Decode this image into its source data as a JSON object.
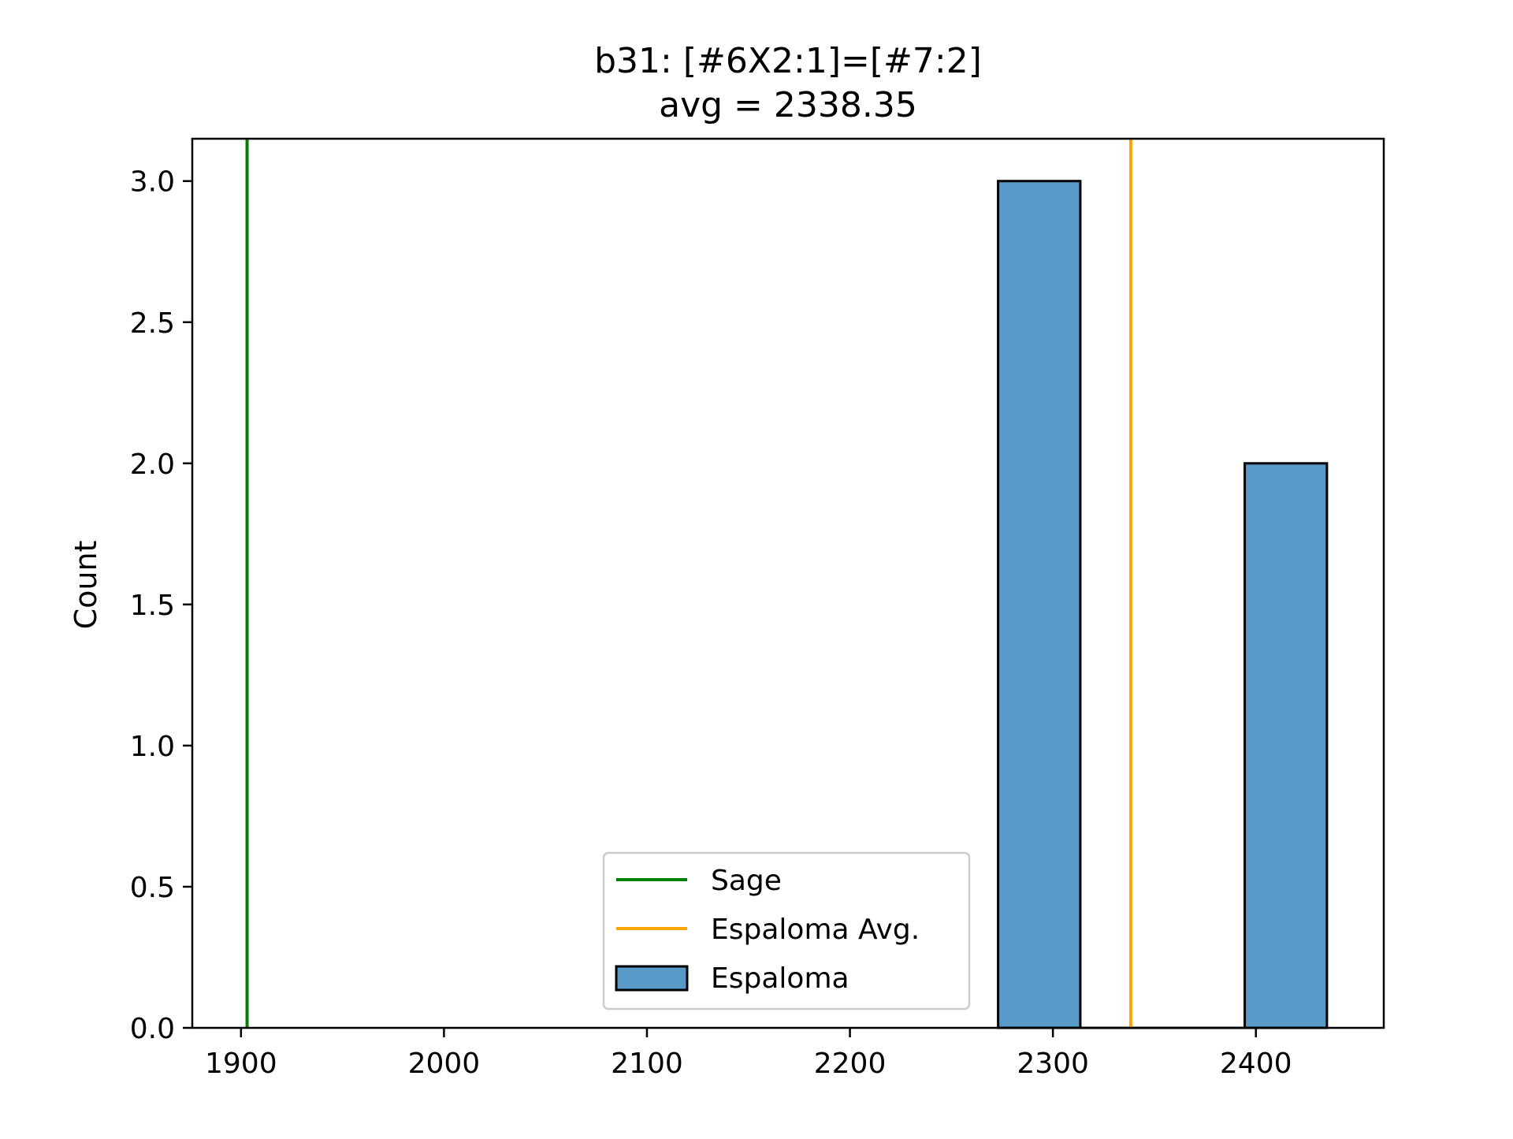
{
  "chart_data": {
    "type": "bar",
    "title": "b31: [#6X2:1]=[#7:2]",
    "subtitle": "avg = 2338.35",
    "xlabel": "",
    "ylabel": "Count",
    "xlim": [
      1876,
      2463
    ],
    "ylim": [
      0,
      3.15
    ],
    "x_ticks": [
      1900,
      2000,
      2100,
      2200,
      2300,
      2400
    ],
    "y_ticks": [
      0.0,
      0.5,
      1.0,
      1.5,
      2.0,
      2.5,
      3.0
    ],
    "bin_width": 40.5,
    "bins": [
      {
        "start": 2273.0,
        "end": 2313.5,
        "count": 3
      },
      {
        "start": 2313.5,
        "end": 2354.0,
        "count": 0
      },
      {
        "start": 2354.0,
        "end": 2394.5,
        "count": 0
      },
      {
        "start": 2394.5,
        "end": 2435.0,
        "count": 2
      }
    ],
    "reference_lines": [
      {
        "name": "Sage",
        "x": 1903,
        "color": "#008000"
      },
      {
        "name": "Espaloma Avg.",
        "x": 2338.35,
        "color": "#ffa500"
      }
    ],
    "bar_series": {
      "name": "Espaloma",
      "color": "#5799c7",
      "edge_color": "#000000"
    },
    "grid": false,
    "legend_position": "lower center"
  }
}
